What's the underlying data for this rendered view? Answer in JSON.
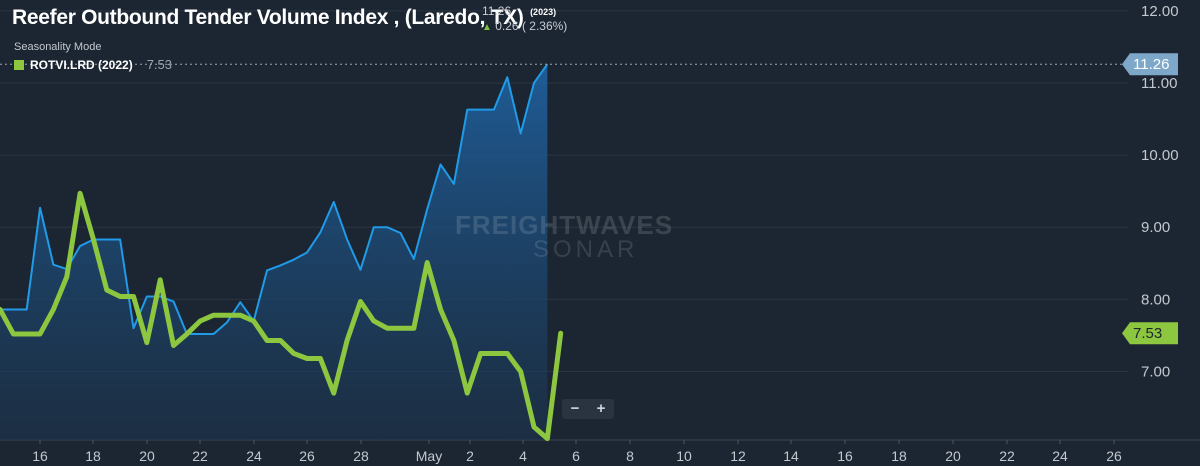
{
  "header": {
    "title": "Reefer Outbound Tender Volume Index , (Laredo, TX)",
    "title_year": "(2023)",
    "last_value": "11.26",
    "change": "0.26 ( 2.36%)",
    "mode": "Seasonality Mode",
    "legend_label": "ROTVI.LRD (2022)",
    "legend_value": "7.53"
  },
  "watermark": {
    "line1": "FREIGHTWAVES",
    "line2": "SONAR"
  },
  "zoom": {
    "minus": "−",
    "plus": "+"
  },
  "colors": {
    "background": "#1c2632",
    "series_2023": "#1f9be8",
    "series_2022": "#8dc63f",
    "axis_text": "#c3c8cf"
  },
  "chart_data": {
    "type": "area",
    "ylim": [
      6.05,
      12.15
    ],
    "y_ticks": [
      "12.00",
      "11.00",
      "10.00",
      "9.00",
      "8.00",
      "7.00"
    ],
    "x_ticks": [
      "16",
      "18",
      "20",
      "22",
      "24",
      "26",
      "28",
      "May",
      "2",
      "4",
      "6",
      "8",
      "10",
      "12",
      "14",
      "16",
      "18",
      "20",
      "22",
      "24",
      "26"
    ],
    "series": [
      {
        "name": "ROTVI.LRD (2023)",
        "style": "area",
        "last_label": "11.26",
        "values": [
          7.86,
          7.86,
          7.86,
          9.27,
          8.48,
          8.42,
          8.74,
          8.83,
          8.83,
          8.83,
          7.6,
          8.04,
          8.04,
          7.97,
          7.52,
          7.52,
          7.52,
          7.68,
          7.96,
          7.7,
          8.4,
          8.47,
          8.55,
          8.65,
          8.93,
          9.35,
          8.83,
          8.41,
          9.0,
          9.0,
          8.92,
          8.56,
          9.25,
          9.87,
          9.6,
          10.63,
          10.63,
          10.63,
          11.08,
          10.3,
          11.0,
          11.26
        ]
      },
      {
        "name": "ROTVI.LRD (2022)",
        "style": "line",
        "last_label": "7.53",
        "values": [
          7.86,
          7.52,
          7.52,
          7.52,
          7.86,
          8.31,
          9.47,
          8.83,
          8.13,
          8.04,
          8.04,
          7.4,
          8.27,
          7.36,
          7.52,
          7.7,
          7.78,
          7.78,
          7.78,
          7.7,
          7.43,
          7.43,
          7.25,
          7.18,
          7.18,
          6.7,
          7.43,
          7.97,
          7.7,
          7.6,
          7.6,
          7.6,
          8.51,
          7.86,
          7.43,
          6.7,
          7.25,
          7.25,
          7.25,
          7.0,
          6.23,
          6.07,
          7.53
        ]
      }
    ]
  }
}
